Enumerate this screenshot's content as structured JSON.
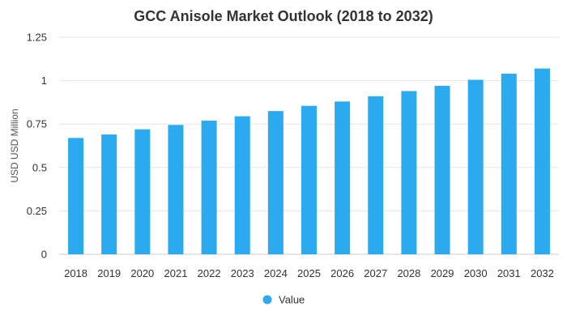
{
  "chart_data": {
    "type": "bar",
    "title": "GCC Anisole Market Outlook (2018 to 2032)",
    "ylabel": "USD USD Million",
    "xlabel": "",
    "categories": [
      "2018",
      "2019",
      "2020",
      "2021",
      "2022",
      "2023",
      "2024",
      "2025",
      "2026",
      "2027",
      "2028",
      "2029",
      "2030",
      "2031",
      "2032"
    ],
    "series": [
      {
        "name": "Value",
        "color": "#2BAAF0",
        "values": [
          0.67,
          0.69,
          0.72,
          0.745,
          0.77,
          0.795,
          0.825,
          0.855,
          0.88,
          0.91,
          0.94,
          0.97,
          1.005,
          1.04,
          1.07
        ]
      }
    ],
    "ylim": [
      0,
      1.25
    ],
    "yticks": [
      0,
      0.25,
      0.5,
      0.75,
      1,
      1.25
    ],
    "ytick_labels": [
      "0",
      "0.25",
      "0.5",
      "0.75",
      "1",
      "1.25"
    ],
    "grid": true,
    "legend_position": "bottom"
  }
}
